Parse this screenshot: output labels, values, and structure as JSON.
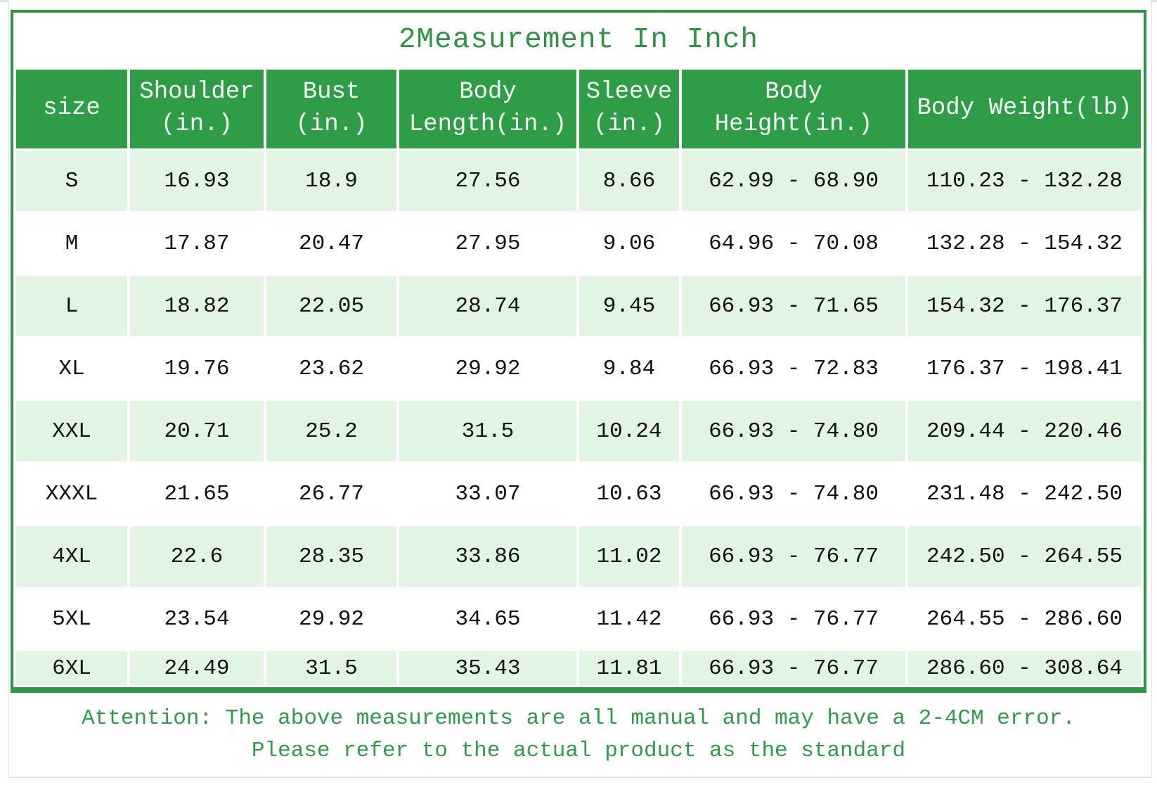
{
  "chart_data": {
    "type": "table",
    "title": "2Measurement In Inch",
    "columns": [
      "size",
      "Shoulder\n(in.)",
      "Bust\n(in.)",
      "Body\nLength(in.)",
      "Sleeve\n(in.)",
      "Body\nHeight(in.)",
      "Body Weight(lb)"
    ],
    "rows": [
      {
        "size": "S",
        "values": [
          "16.93",
          "18.9",
          "27.56",
          "8.66",
          "62.99 - 68.90",
          "110.23 - 132.28"
        ]
      },
      {
        "size": "M",
        "values": [
          "17.87",
          "20.47",
          "27.95",
          "9.06",
          "64.96 - 70.08",
          "132.28 - 154.32"
        ]
      },
      {
        "size": "L",
        "values": [
          "18.82",
          "22.05",
          "28.74",
          "9.45",
          "66.93 - 71.65",
          "154.32 - 176.37"
        ]
      },
      {
        "size": "XL",
        "values": [
          "19.76",
          "23.62",
          "29.92",
          "9.84",
          "66.93 - 72.83",
          "176.37 - 198.41"
        ]
      },
      {
        "size": "XXL",
        "values": [
          "20.71",
          "25.2",
          "31.5",
          "10.24",
          "66.93 - 74.80",
          "209.44 - 220.46"
        ]
      },
      {
        "size": "XXXL",
        "values": [
          "21.65",
          "26.77",
          "33.07",
          "10.63",
          "66.93 - 74.80",
          "231.48 - 242.50"
        ]
      },
      {
        "size": "4XL",
        "values": [
          "22.6",
          "28.35",
          "33.86",
          "11.02",
          "66.93 - 76.77",
          "242.50 - 264.55"
        ]
      },
      {
        "size": "5XL",
        "values": [
          "23.54",
          "29.92",
          "34.65",
          "11.42",
          "66.93 - 76.77",
          "264.55 - 286.60"
        ]
      },
      {
        "size": "6XL",
        "values": [
          "24.49",
          "31.5",
          "35.43",
          "11.81",
          "66.93 - 76.77",
          "286.60 - 308.64"
        ]
      }
    ],
    "notes": [
      "Attention: The above measurements are all manual and may have a 2-4CM error.",
      "Please refer to the actual product as the standard"
    ]
  },
  "colors": {
    "header_green": "#2f9d48",
    "border_green": "#2c9743",
    "light_green": "#e2f5e3",
    "title_green": "#2e9443",
    "note_green": "#2f9c4a",
    "text_ink": "#121212"
  }
}
